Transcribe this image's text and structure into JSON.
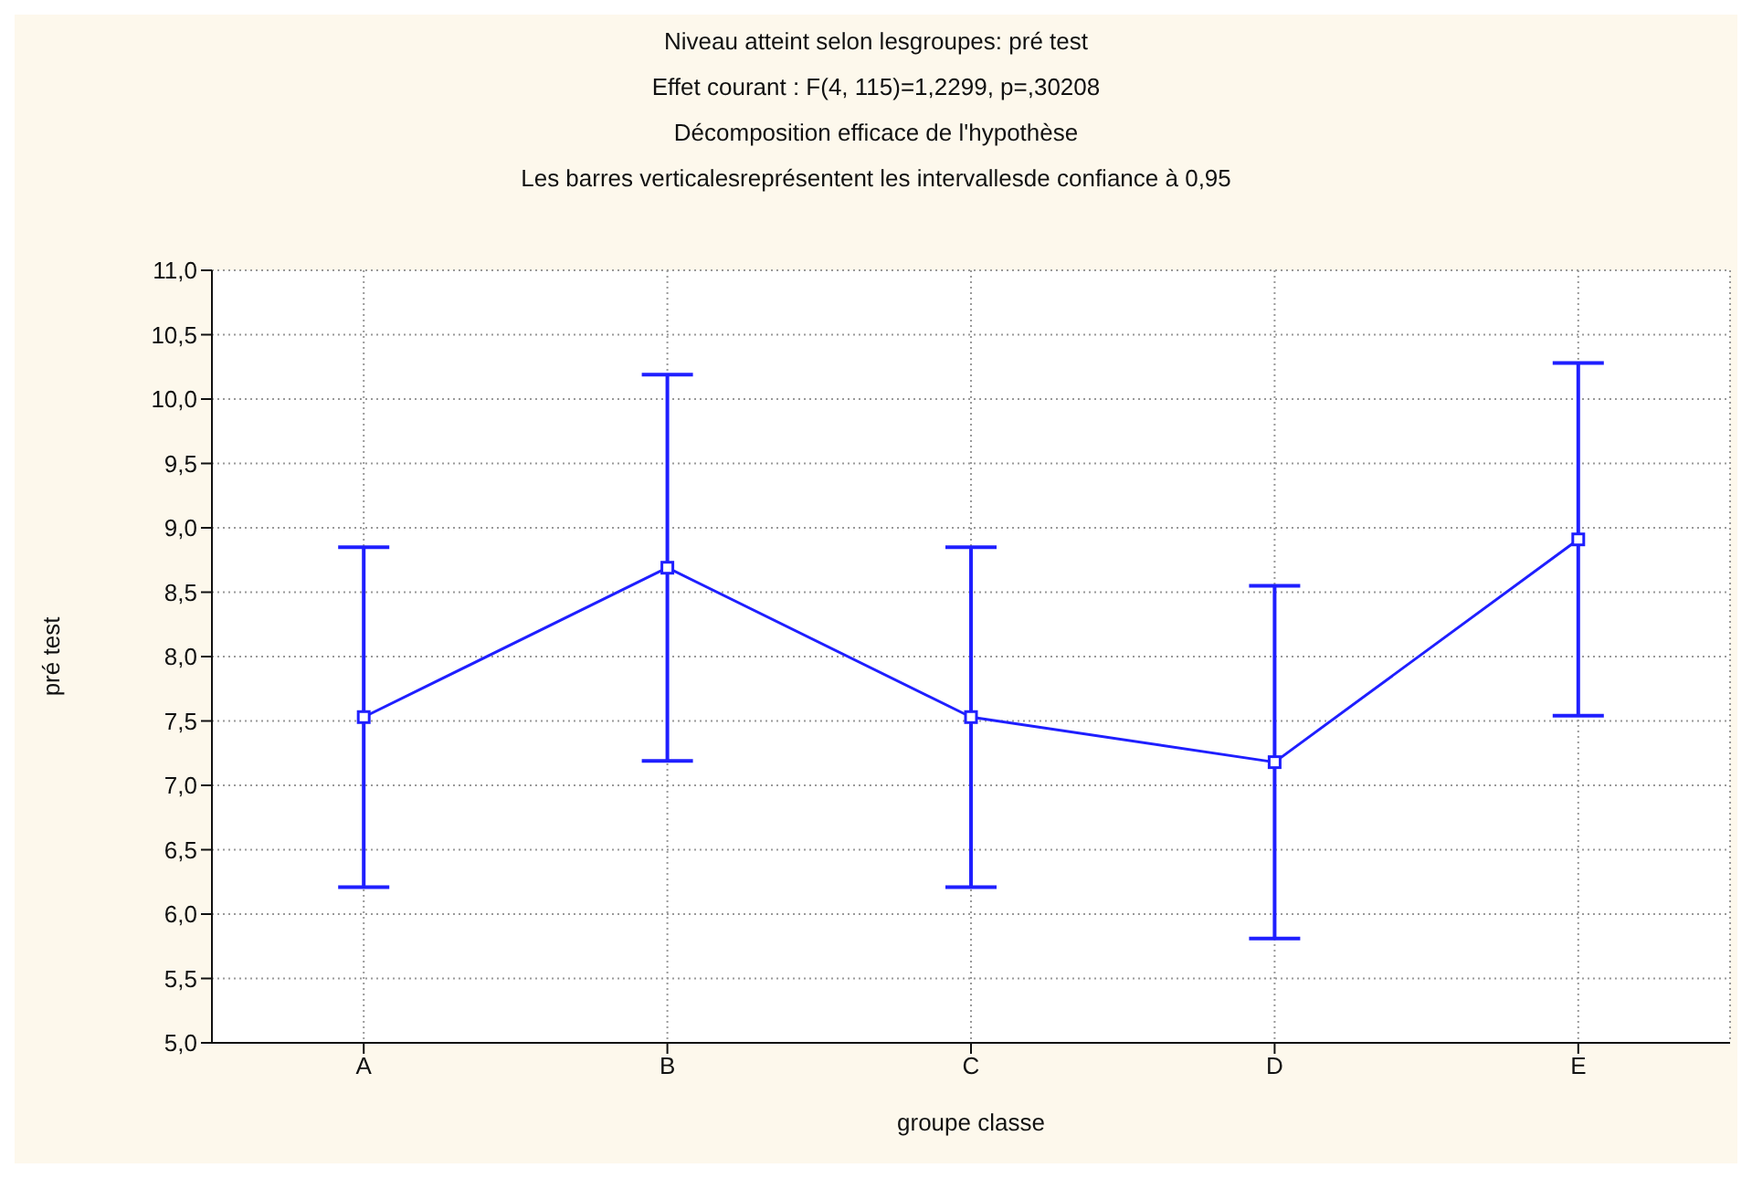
{
  "chart_data": {
    "type": "line",
    "title": "Niveau atteint selon lesgroupes: pré test",
    "subtitle": "Effet courant : F(4, 115)=1,2299, p=,30208",
    "annotations": [
      "Décomposition efficace de l'hypothèse",
      "Les barres verticalesreprésentent les intervallesde confiance à 0,95"
    ],
    "xlabel": "groupe classe",
    "ylabel": "pré test",
    "categories": [
      "A",
      "B",
      "C",
      "D",
      "E"
    ],
    "series": [
      {
        "color": "#1f1fff",
        "values": [
          7.53,
          8.69,
          7.53,
          7.18,
          8.91
        ],
        "errors": [
          1.32,
          1.5,
          1.32,
          1.37,
          1.37
        ]
      }
    ],
    "ylim": [
      5,
      11
    ],
    "yticks": [
      {
        "value": 5,
        "label": "5,0"
      },
      {
        "value": 5.5,
        "label": "5,5"
      },
      {
        "value": 6,
        "label": "6,0"
      },
      {
        "value": 6.5,
        "label": "6,5"
      },
      {
        "value": 7,
        "label": "7,0"
      },
      {
        "value": 7.5,
        "label": "7,5"
      },
      {
        "value": 8,
        "label": "8,0"
      },
      {
        "value": 8.5,
        "label": "8,5"
      },
      {
        "value": 9,
        "label": "9,0"
      },
      {
        "value": 9.5,
        "label": "9,5"
      },
      {
        "value": 10,
        "label": "10,0"
      },
      {
        "value": 10.5,
        "label": "10,5"
      },
      {
        "value": 11,
        "label": "11,0"
      }
    ],
    "grid": true,
    "marker": "square",
    "line_style": "solid",
    "legend": false
  }
}
